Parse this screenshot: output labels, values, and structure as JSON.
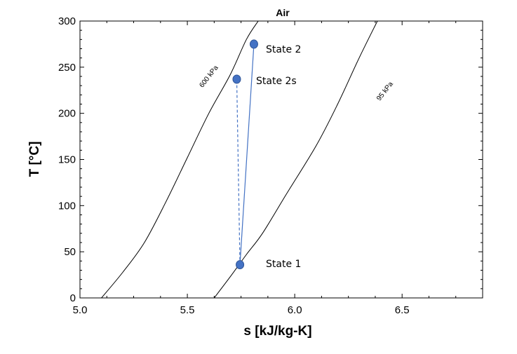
{
  "chart_data": {
    "type": "line",
    "title": "Air",
    "xlabel": "s [kJ/kg-K]",
    "ylabel": "T [°C]",
    "xlim": [
      5.0,
      6.875
    ],
    "ylim": [
      0,
      300
    ],
    "x_ticks": [
      "5.0",
      "5.5",
      "6.0",
      "6.5"
    ],
    "y_ticks": [
      "0",
      "50",
      "100",
      "150",
      "200",
      "250",
      "300"
    ],
    "grid": false,
    "colors": {
      "isobar": "#000000",
      "process": "#4472C4",
      "marker": "#4472C4"
    },
    "series": [
      {
        "name": "600 kPa",
        "kind": "isobar",
        "points": [
          {
            "s": 5.1,
            "T": 0
          },
          {
            "s": 5.2,
            "T": 28
          },
          {
            "s": 5.3,
            "T": 60
          },
          {
            "s": 5.4,
            "T": 104
          },
          {
            "s": 5.5,
            "T": 152
          },
          {
            "s": 5.6,
            "T": 200
          },
          {
            "s": 5.7,
            "T": 242
          },
          {
            "s": 5.775,
            "T": 280
          },
          {
            "s": 5.83,
            "T": 300
          }
        ]
      },
      {
        "name": "95 kPa",
        "kind": "isobar",
        "points": [
          {
            "s": 5.625,
            "T": 0
          },
          {
            "s": 5.7,
            "T": 23
          },
          {
            "s": 5.775,
            "T": 47
          },
          {
            "s": 5.85,
            "T": 70
          },
          {
            "s": 5.96,
            "T": 112
          },
          {
            "s": 6.1,
            "T": 165
          },
          {
            "s": 6.2,
            "T": 210
          },
          {
            "s": 6.3,
            "T": 260
          },
          {
            "s": 6.385,
            "T": 300
          }
        ]
      }
    ],
    "process_lines": [
      {
        "from": "State 1",
        "to": "State 2",
        "style": "solid"
      },
      {
        "from": "State 1",
        "to": "State 2s",
        "style": "dashed"
      }
    ],
    "states": [
      {
        "label": "State 1",
        "s": 5.745,
        "T": 36
      },
      {
        "label": "State 2s",
        "s": 5.73,
        "T": 237
      },
      {
        "label": "State 2",
        "s": 5.81,
        "T": 275
      }
    ]
  }
}
